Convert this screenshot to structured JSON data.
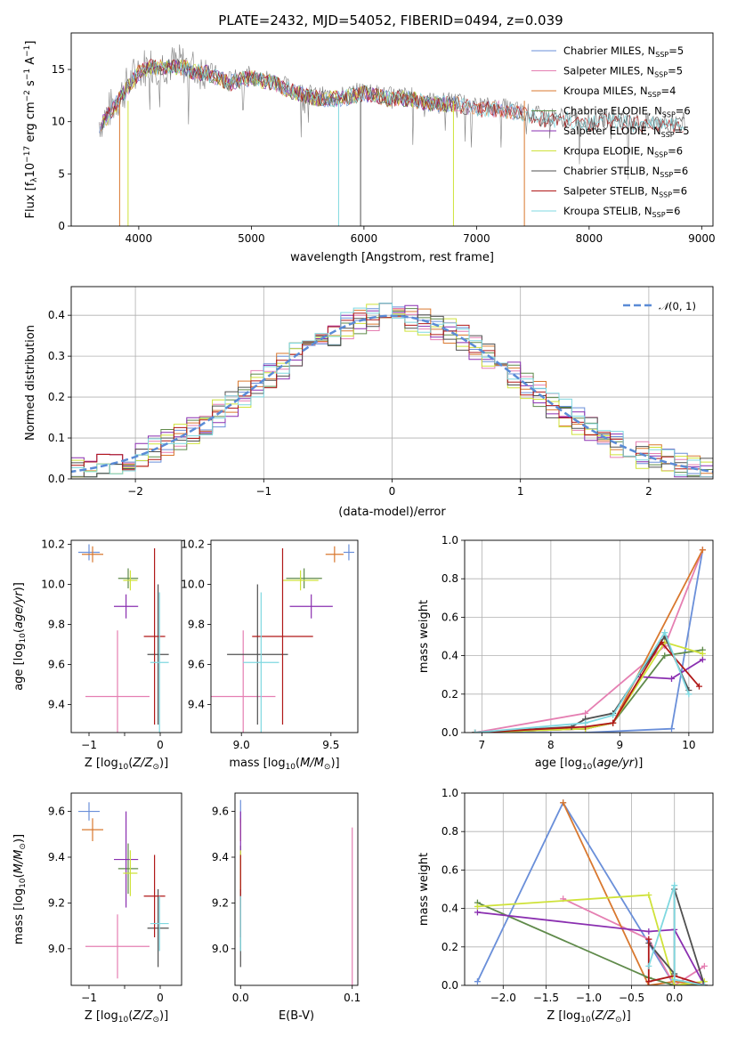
{
  "figure_title": "PLATE=2432, MJD=54052, FIBERID=0494, z=0.039",
  "colors": {
    "Chabrier MILES": "#6a8fd9",
    "Salpeter MILES": "#e57fb2",
    "Kroupa MILES": "#d9782f",
    "Chabrier ELODIE": "#5f8a4a",
    "Salpeter ELODIE": "#8a2fb0",
    "Kroupa ELODIE": "#cfe23a",
    "Chabrier STELIB": "#505050",
    "Salpeter STELIB": "#b01818",
    "Kroupa STELIB": "#7fd8e0",
    "gaussian": "#5a8bd6"
  },
  "chart_data": [
    {
      "id": "spectrum",
      "type": "line",
      "xlabel": "wavelength [Angstrom, rest frame]",
      "ylabel": "Flux [f_λ10^-17 erg cm^-2 s^-1 A^-1]",
      "xlim": [
        3400,
        9100
      ],
      "ylim": [
        0,
        18.5
      ],
      "xticks": [
        4000,
        5000,
        6000,
        7000,
        8000,
        9000
      ],
      "yticks": [
        0,
        5,
        10,
        15
      ],
      "legend": [
        "Chabrier MILES, N_SSP=5",
        "Salpeter MILES, N_SSP=5",
        "Kroupa MILES, N_SSP=4",
        "Chabrier ELODIE, N_SSP=6",
        "Salpeter ELODIE, N_SSP=5",
        "Kroupa ELODIE, N_SSP=6",
        "Chabrier STELIB, N_SSP=6",
        "Salpeter STELIB, N_SSP=6",
        "Kroupa STELIB, N_SSP=6"
      ],
      "legend_position": "upper right",
      "x": [
        3650,
        3700,
        3800,
        3900,
        4000,
        4100,
        4200,
        4300,
        4400,
        4500,
        4600,
        4700,
        4800,
        5000,
        5200,
        5400,
        5600,
        5800,
        6000,
        6200,
        6400,
        6600,
        6800,
        7000,
        7200,
        7400,
        7600,
        7800,
        8000,
        8200,
        8400,
        8600,
        8850
      ],
      "data_series": [
        {
          "name": "Data",
          "y": [
            10.0,
            10.5,
            12.0,
            13.5,
            15.0,
            15.5,
            15.5,
            15.5,
            15.5,
            15.0,
            15.0,
            14.5,
            14.0,
            14.5,
            14.0,
            13.0,
            12.5,
            12.5,
            13.0,
            12.5,
            12.5,
            12.0,
            12.0,
            11.5,
            11.5,
            11.0,
            10.5,
            10.5,
            10.0,
            10.5,
            10.0,
            10.0,
            10.0
          ]
        }
      ]
    },
    {
      "id": "residuals",
      "type": "line",
      "xlabel": "(data-model)/error",
      "ylabel": "Normed distribution",
      "xlim": [
        -2.5,
        2.5
      ],
      "ylim": [
        0,
        0.47
      ],
      "xticks": [
        -2,
        -1,
        0,
        1,
        2
      ],
      "yticks": [
        0.0,
        0.1,
        0.2,
        0.3,
        0.4
      ],
      "legend": [
        "𝒩(0,1)"
      ],
      "legend_position": "upper right",
      "grid": true,
      "bin_edges_range": [
        -2.5,
        2.5
      ],
      "bin_width": 0.1
    },
    {
      "id": "age_vs_Z",
      "type": "scatter",
      "xlabel": "Z [log10(Z/Z⊙)]",
      "ylabel": "age [log10(age/yr)]",
      "xlim": [
        -1.25,
        0.3
      ],
      "ylim": [
        9.26,
        10.22
      ],
      "xticks": [
        -1,
        -0.5,
        0
      ],
      "xticklabels": [
        "−1",
        "",
        "0"
      ],
      "yticks": [
        9.4,
        9.6,
        9.8,
        10.0,
        10.2
      ],
      "points": [
        {
          "series": "Chabrier MILES",
          "x": -1.0,
          "y": 10.16,
          "xerr": 0.15,
          "yerr": 0.04
        },
        {
          "series": "Salpeter MILES",
          "x": -0.6,
          "y": 9.44,
          "xerr": 0.45,
          "yerr": 0.33
        },
        {
          "series": "Kroupa MILES",
          "x": -0.95,
          "y": 10.15,
          "xerr": 0.15,
          "yerr": 0.04
        },
        {
          "series": "Chabrier ELODIE",
          "x": -0.45,
          "y": 10.03,
          "xerr": 0.14,
          "yerr": 0.05
        },
        {
          "series": "Salpeter ELODIE",
          "x": -0.48,
          "y": 9.89,
          "xerr": 0.17,
          "yerr": 0.06
        },
        {
          "series": "Kroupa ELODIE",
          "x": -0.42,
          "y": 10.02,
          "xerr": 0.1,
          "yerr": 0.05
        },
        {
          "series": "Chabrier STELIB",
          "x": -0.03,
          "y": 9.65,
          "xerr": 0.15,
          "yerr": 0.35
        },
        {
          "series": "Salpeter STELIB",
          "x": -0.08,
          "y": 9.74,
          "xerr": 0.15,
          "yerr": 0.44
        },
        {
          "series": "Kroupa STELIB",
          "x": -0.01,
          "y": 9.61,
          "xerr": 0.13,
          "yerr": 0.35
        }
      ]
    },
    {
      "id": "age_vs_mass",
      "type": "scatter",
      "xlabel": "mass [log10(M/M⊙)]",
      "ylabel": "",
      "xlim": [
        8.83,
        9.65
      ],
      "ylim": [
        9.26,
        10.22
      ],
      "xticks": [
        9.0,
        9.5
      ],
      "yticks": [
        9.4,
        9.6,
        9.8,
        10.0,
        10.2
      ],
      "points": [
        {
          "series": "Chabrier MILES",
          "x": 9.6,
          "y": 10.16,
          "xerr": 0.03,
          "yerr": 0.04
        },
        {
          "series": "Salpeter MILES",
          "x": 9.01,
          "y": 9.44,
          "xerr": 0.18,
          "yerr": 0.33
        },
        {
          "series": "Kroupa MILES",
          "x": 9.52,
          "y": 10.15,
          "xerr": 0.05,
          "yerr": 0.04
        },
        {
          "series": "Chabrier ELODIE",
          "x": 9.35,
          "y": 10.03,
          "xerr": 0.1,
          "yerr": 0.05
        },
        {
          "series": "Salpeter ELODIE",
          "x": 9.39,
          "y": 9.89,
          "xerr": 0.12,
          "yerr": 0.06
        },
        {
          "series": "Kroupa ELODIE",
          "x": 9.33,
          "y": 10.02,
          "xerr": 0.1,
          "yerr": 0.05
        },
        {
          "series": "Chabrier STELIB",
          "x": 9.09,
          "y": 9.65,
          "xerr": 0.17,
          "yerr": 0.35
        },
        {
          "series": "Salpeter STELIB",
          "x": 9.23,
          "y": 9.74,
          "xerr": 0.17,
          "yerr": 0.44
        },
        {
          "series": "Kroupa STELIB",
          "x": 9.11,
          "y": 9.61,
          "xerr": 0.1,
          "yerr": 0.35
        }
      ]
    },
    {
      "id": "weight_vs_age",
      "type": "line",
      "xlabel": "age [log10(age/yr)]",
      "ylabel": "mass weight",
      "xlim": [
        6.75,
        10.35
      ],
      "ylim": [
        0,
        1.0
      ],
      "xticks": [
        7,
        8,
        9,
        10
      ],
      "yticks": [
        0.0,
        0.2,
        0.4,
        0.6,
        0.8,
        1.0
      ],
      "grid": true,
      "series": [
        {
          "name": "Chabrier MILES",
          "x": [
            6.9,
            8.5,
            9.75,
            10.2
          ],
          "y": [
            0.0,
            0.0,
            0.02,
            0.95
          ]
        },
        {
          "name": "Salpeter MILES",
          "x": [
            6.9,
            8.5,
            9.65,
            10.2
          ],
          "y": [
            0.0,
            0.1,
            0.45,
            0.95
          ]
        },
        {
          "name": "Kroupa MILES",
          "x": [
            6.9,
            8.5,
            8.9,
            10.2
          ],
          "y": [
            0.0,
            0.02,
            0.05,
            0.95
          ]
        },
        {
          "name": "Chabrier ELODIE",
          "x": [
            6.9,
            8.5,
            8.9,
            9.65,
            10.2
          ],
          "y": [
            0.0,
            0.02,
            0.05,
            0.4,
            0.43
          ]
        },
        {
          "name": "Salpeter ELODIE",
          "x": [
            6.9,
            8.5,
            8.9,
            9.3,
            9.75,
            10.2
          ],
          "y": [
            0.0,
            0.02,
            0.05,
            0.29,
            0.28,
            0.38
          ]
        },
        {
          "name": "Kroupa ELODIE",
          "x": [
            6.9,
            8.5,
            8.9,
            9.65,
            10.2
          ],
          "y": [
            0.0,
            0.02,
            0.05,
            0.47,
            0.41
          ]
        },
        {
          "name": "Chabrier STELIB",
          "x": [
            6.9,
            8.3,
            8.5,
            8.9,
            9.65,
            10.0
          ],
          "y": [
            0.0,
            0.03,
            0.07,
            0.1,
            0.5,
            0.22
          ]
        },
        {
          "name": "Salpeter STELIB",
          "x": [
            6.9,
            8.5,
            8.9,
            9.6,
            10.15
          ],
          "y": [
            0.0,
            0.03,
            0.05,
            0.47,
            0.24
          ]
        },
        {
          "name": "Kroupa STELIB",
          "x": [
            6.9,
            8.5,
            8.9,
            9.65,
            10.0
          ],
          "y": [
            0.0,
            0.05,
            0.09,
            0.52,
            0.2
          ]
        }
      ]
    },
    {
      "id": "mass_vs_Z",
      "type": "scatter",
      "xlabel": "Z [log10(Z/Z⊙)]",
      "ylabel": "mass [log10(M/M⊙)]",
      "xlim": [
        -1.25,
        0.3
      ],
      "ylim": [
        8.84,
        9.68
      ],
      "xticks": [
        -1,
        -0.5,
        0
      ],
      "xticklabels": [
        "−1",
        "",
        "0"
      ],
      "yticks": [
        9.0,
        9.2,
        9.4,
        9.6
      ],
      "points": [
        {
          "series": "Chabrier MILES",
          "x": -1.0,
          "y": 9.6,
          "xerr": 0.15,
          "yerr": 0.04
        },
        {
          "series": "Salpeter MILES",
          "x": -0.6,
          "y": 9.01,
          "xerr": 0.45,
          "yerr": 0.14
        },
        {
          "series": "Kroupa MILES",
          "x": -0.95,
          "y": 9.52,
          "xerr": 0.15,
          "yerr": 0.05
        },
        {
          "series": "Chabrier ELODIE",
          "x": -0.45,
          "y": 9.35,
          "xerr": 0.14,
          "yerr": 0.11
        },
        {
          "series": "Salpeter ELODIE",
          "x": -0.48,
          "y": 9.39,
          "xerr": 0.17,
          "yerr": 0.21
        },
        {
          "series": "Kroupa ELODIE",
          "x": -0.42,
          "y": 9.33,
          "xerr": 0.1,
          "yerr": 0.1
        },
        {
          "series": "Chabrier STELIB",
          "x": -0.03,
          "y": 9.09,
          "xerr": 0.15,
          "yerr": 0.17
        },
        {
          "series": "Salpeter STELIB",
          "x": -0.08,
          "y": 9.23,
          "xerr": 0.15,
          "yerr": 0.18
        },
        {
          "series": "Kroupa STELIB",
          "x": -0.01,
          "y": 9.11,
          "xerr": 0.13,
          "yerr": 0.12
        }
      ]
    },
    {
      "id": "mass_vs_ebv",
      "type": "scatter",
      "xlabel": "E(B-V)",
      "ylabel": "",
      "xlim": [
        -0.005,
        0.105
      ],
      "ylim": [
        8.84,
        9.68
      ],
      "xticks": [
        0.0,
        0.1
      ],
      "yticks": [
        9.0,
        9.2,
        9.4,
        9.6
      ],
      "points": [
        {
          "series": "Chabrier MILES",
          "x": 0.0,
          "y": 9.6,
          "xerr": 0,
          "yerr": 0.05
        },
        {
          "series": "Salpeter MILES",
          "x": 0.1,
          "y": 9.01,
          "xerr": 0,
          "yerr": 0.52
        },
        {
          "series": "Kroupa MILES",
          "x": 0.0,
          "y": 9.52,
          "xerr": 0,
          "yerr": 0.05
        },
        {
          "series": "Chabrier ELODIE",
          "x": 0.0,
          "y": 9.35,
          "xerr": 0,
          "yerr": 0.1
        },
        {
          "series": "Salpeter ELODIE",
          "x": 0.0,
          "y": 9.39,
          "xerr": 0,
          "yerr": 0.21
        },
        {
          "series": "Kroupa ELODIE",
          "x": 0.0,
          "y": 9.33,
          "xerr": 0,
          "yerr": 0.1
        },
        {
          "series": "Chabrier STELIB",
          "x": 0.0,
          "y": 9.09,
          "xerr": 0,
          "yerr": 0.17
        },
        {
          "series": "Salpeter STELIB",
          "x": 0.0,
          "y": 9.23,
          "xerr": 0,
          "yerr": 0.18
        },
        {
          "series": "Kroupa STELIB",
          "x": 0.0,
          "y": 9.11,
          "xerr": 0,
          "yerr": 0.12
        }
      ]
    },
    {
      "id": "weight_vs_Z",
      "type": "line",
      "xlabel": "Z [log10(Z/Z⊙)]",
      "ylabel": "mass weight",
      "xlim": [
        -2.45,
        0.45
      ],
      "ylim": [
        0,
        1.0
      ],
      "xticks": [
        -2.0,
        -1.5,
        -1.0,
        -0.5,
        0.0
      ],
      "yticks": [
        0.0,
        0.2,
        0.4,
        0.6,
        0.8,
        1.0
      ],
      "grid": true,
      "series": [
        {
          "name": "Chabrier MILES",
          "x": [
            -2.3,
            -1.3,
            0.0,
            0.35
          ],
          "y": [
            0.02,
            0.95,
            0.0,
            0.0
          ]
        },
        {
          "name": "Salpeter MILES",
          "x": [
            -1.3,
            -0.3,
            0.0,
            0.35
          ],
          "y": [
            0.45,
            0.24,
            0.0,
            0.1
          ]
        },
        {
          "name": "Kroupa MILES",
          "x": [
            -1.3,
            -0.3,
            0.0,
            0.35
          ],
          "y": [
            0.95,
            0.0,
            0.02,
            0.0
          ]
        },
        {
          "name": "Chabrier ELODIE",
          "x": [
            -2.3,
            -0.3,
            0.0,
            0.35
          ],
          "y": [
            0.43,
            0.04,
            0.0,
            0.0
          ]
        },
        {
          "name": "Salpeter ELODIE",
          "x": [
            -2.3,
            -0.3,
            0.0,
            0.35
          ],
          "y": [
            0.38,
            0.28,
            0.29,
            0.0
          ]
        },
        {
          "name": "Kroupa ELODIE",
          "x": [
            -2.3,
            -0.3,
            0.0,
            0.35
          ],
          "y": [
            0.41,
            0.47,
            0.0,
            0.02
          ]
        },
        {
          "name": "Chabrier STELIB",
          "x": [
            -0.3,
            0.0,
            0.0,
            0.35
          ],
          "y": [
            0.22,
            0.06,
            0.5,
            0.0
          ]
        },
        {
          "name": "Salpeter STELIB",
          "x": [
            -0.3,
            -0.3,
            0.0,
            0.35
          ],
          "y": [
            0.24,
            0.02,
            0.05,
            0.0
          ]
        },
        {
          "name": "Kroupa STELIB",
          "x": [
            -0.3,
            0.0,
            0.0,
            0.35
          ],
          "y": [
            0.1,
            0.52,
            0.03,
            0.0
          ]
        }
      ]
    }
  ]
}
